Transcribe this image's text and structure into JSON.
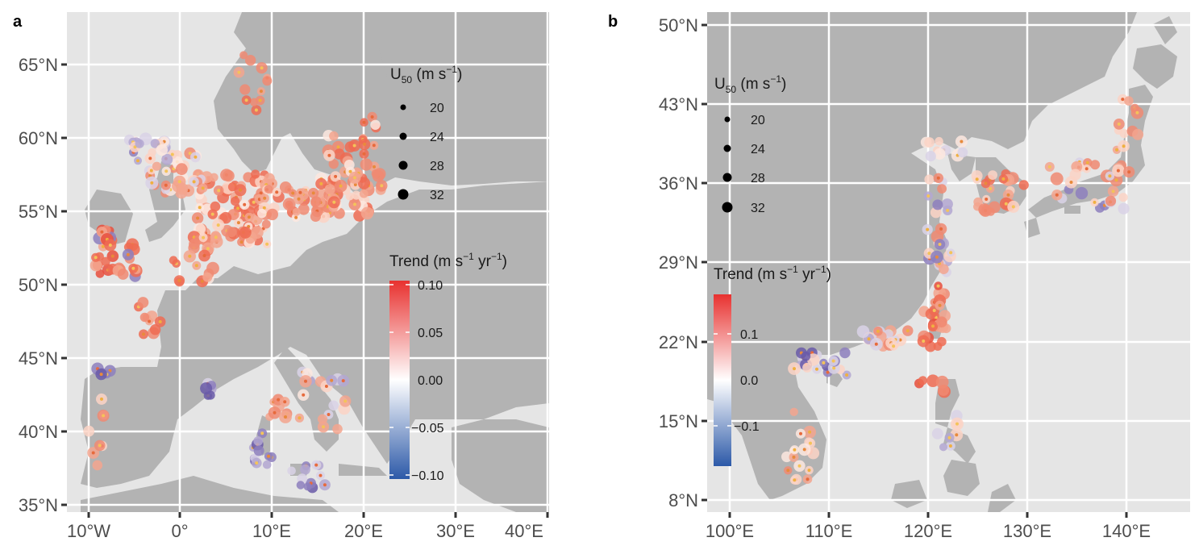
{
  "panels": [
    {
      "label": "a",
      "region": "Europe",
      "y_ticks": [
        "65°N",
        "60°N",
        "55°N",
        "50°N",
        "45°N",
        "40°N",
        "35°N"
      ],
      "x_ticks": [
        "10°W",
        "0°",
        "10°E",
        "20°E",
        "30°E",
        "40°E"
      ],
      "size_legend": {
        "title_main": "U",
        "title_sub": "50",
        "title_unit": " (m s",
        "title_sup": "−1",
        "title_close": ")",
        "values": [
          "20",
          "24",
          "28",
          "32"
        ]
      },
      "color_legend": {
        "title_main": "Trend (m s",
        "title_sup1": "−1",
        "title_mid": " yr",
        "title_sup2": "−1",
        "title_close": ")",
        "labels": [
          "0.10",
          "0.05",
          "0.00",
          "−0.05",
          "−0.10"
        ]
      }
    },
    {
      "label": "b",
      "region": "East Asia",
      "y_ticks": [
        "50°N",
        "43°N",
        "36°N",
        "29°N",
        "22°N",
        "15°N",
        "8°N"
      ],
      "x_ticks": [
        "100°E",
        "110°E",
        "120°E",
        "130°E",
        "140°E"
      ],
      "size_legend": {
        "title_main": "U",
        "title_sub": "50",
        "title_unit": " (m s",
        "title_sup": "−1",
        "title_close": ")",
        "values": [
          "20",
          "24",
          "28",
          "32"
        ]
      },
      "color_legend": {
        "title_main": "Trend (m s",
        "title_sup1": "−1",
        "title_mid": " yr",
        "title_sup2": "−1",
        "title_close": ")",
        "labels": [
          "0.1",
          "0.0",
          "−0.1"
        ]
      }
    }
  ],
  "colors": {
    "ocean": "#e5e5e5",
    "land": "#b3b3b3",
    "grid": "#ffffff",
    "high": "#e8312f",
    "zero": "#ffffff",
    "low": "#2c59a8"
  }
}
